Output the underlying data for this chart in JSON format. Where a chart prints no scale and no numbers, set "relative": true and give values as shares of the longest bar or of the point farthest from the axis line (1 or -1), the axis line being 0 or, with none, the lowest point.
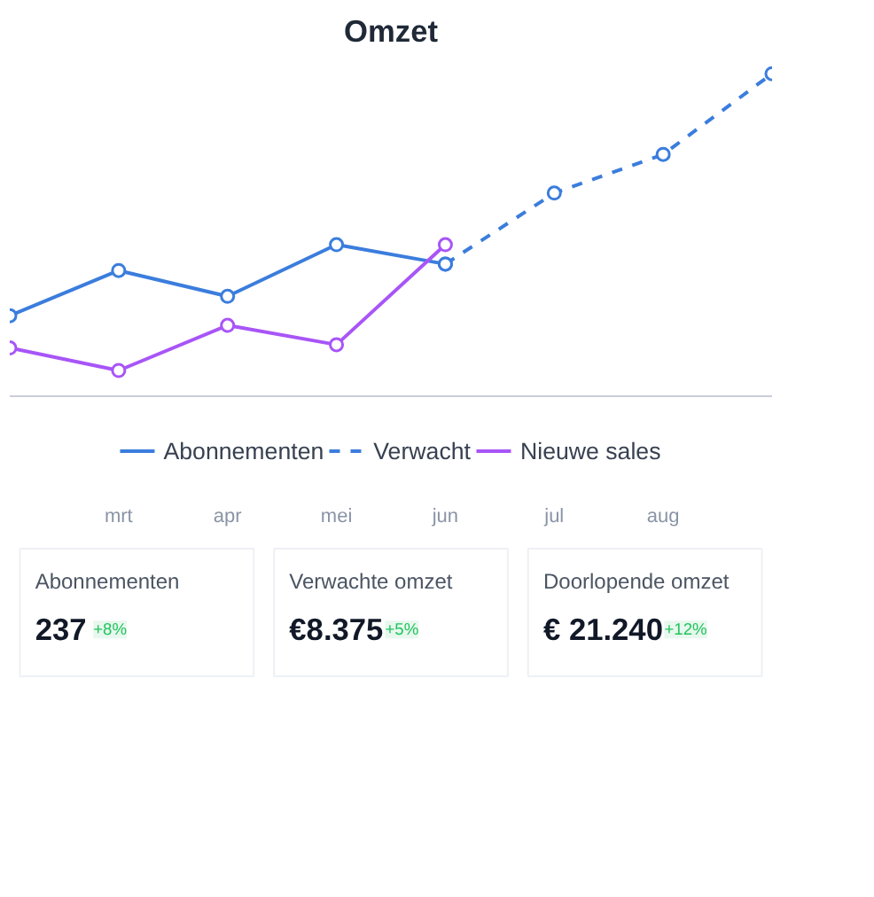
{
  "chart_data": [
    {
      "type": "line",
      "title": "Omzet",
      "relative": true,
      "categories": [
        null,
        "mrt",
        "apr",
        "mei",
        "jun",
        "jul",
        "aug",
        null
      ],
      "marker": "circle",
      "legend": "bottom",
      "series": [
        {
          "name": "Abonnementen",
          "color": "#3b7ddd",
          "line_style": "solid",
          "values": [
            0.25,
            0.39,
            0.31,
            0.47,
            0.41,
            null,
            null,
            null
          ]
        },
        {
          "name": "Verwacht",
          "color": "#3b7ddd",
          "line_style": "dashed",
          "values": [
            null,
            null,
            null,
            null,
            0.41,
            0.63,
            0.75,
            1.0
          ]
        },
        {
          "name": "Nieuwe sales",
          "color": "#a855f7",
          "line_style": "solid",
          "values": [
            0.15,
            0.08,
            0.22,
            0.16,
            0.47,
            null,
            null,
            null
          ]
        }
      ]
    },
    {
      "type": "other",
      "annotations": [
        "Abonnementen",
        "237",
        "+8%",
        "Verwachte omzet",
        "€8.375",
        "+5%",
        "Doorlopende omzet",
        "€ 21.240",
        "+12%"
      ]
    }
  ]
}
